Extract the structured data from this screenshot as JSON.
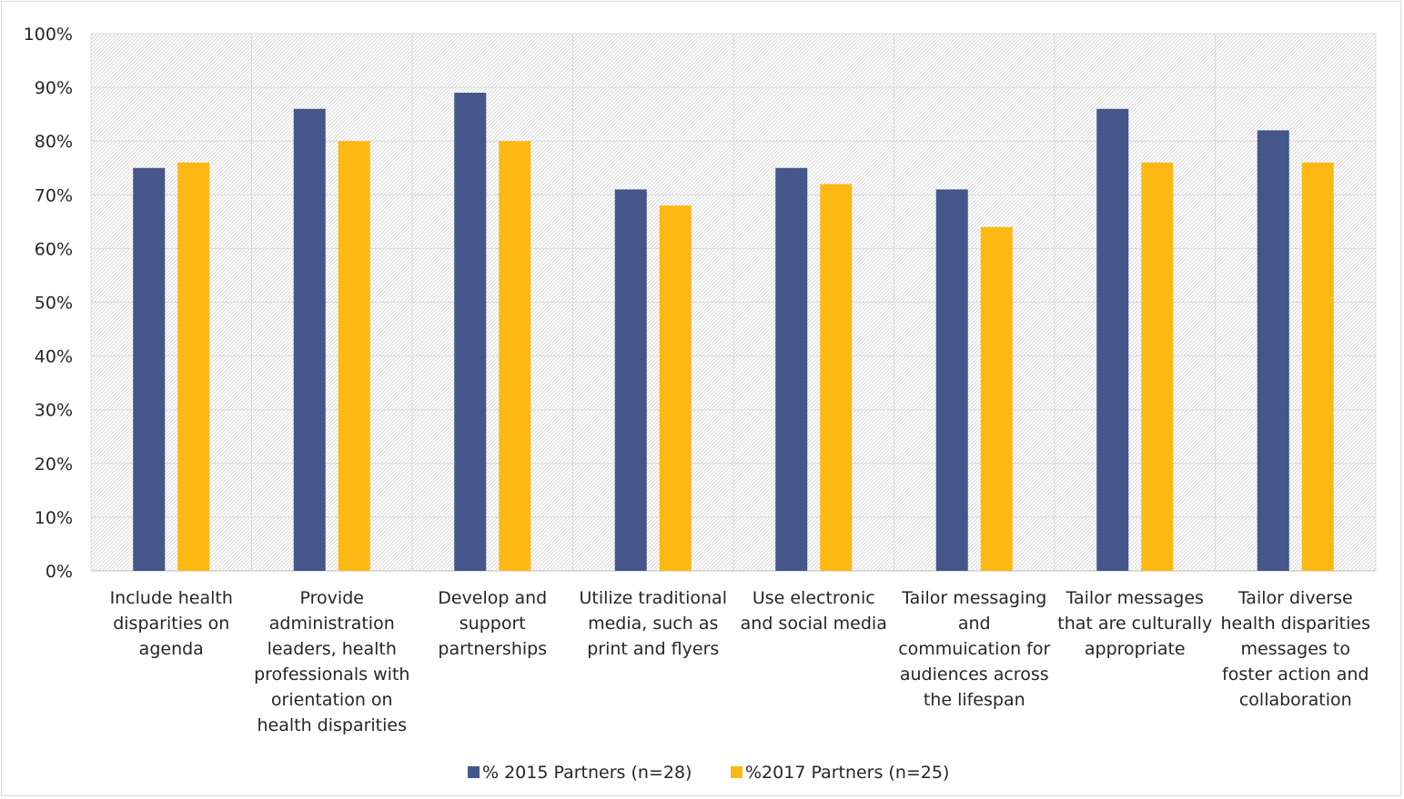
{
  "chart_data": {
    "type": "bar",
    "title": "",
    "xlabel": "",
    "ylabel": "",
    "ylim": [
      0,
      100
    ],
    "y_tick_step": 10,
    "y_tick_format": "percent",
    "grid": true,
    "legend_position": "bottom",
    "plot_background": "hatched",
    "categories": [
      [
        "Include health",
        "disparities on",
        "agenda"
      ],
      [
        "Provide",
        "administration",
        "leaders, health",
        "professionals with",
        "orientation on",
        "health disparities"
      ],
      [
        "Develop and",
        "support",
        "partnerships"
      ],
      [
        "Utilize traditional",
        "media, such as",
        "print and flyers"
      ],
      [
        "Use electronic",
        "and social media"
      ],
      [
        "Tailor messaging",
        "and",
        "commuication for",
        "audiences across",
        "the lifespan"
      ],
      [
        "Tailor messages",
        "that are culturally",
        "appropriate"
      ],
      [
        "Tailor diverse",
        "health disparities",
        "messages to",
        "foster action and",
        "collaboration"
      ]
    ],
    "series": [
      {
        "name": "% 2015 Partners (n=28)",
        "color": "#44568a",
        "values": [
          75,
          86,
          89,
          71,
          75,
          71,
          86,
          82
        ]
      },
      {
        "name": "%2017 Partners (n=25)",
        "color": "#fdb813",
        "values": [
          76,
          80,
          80,
          68,
          72,
          64,
          76,
          76
        ]
      }
    ]
  }
}
